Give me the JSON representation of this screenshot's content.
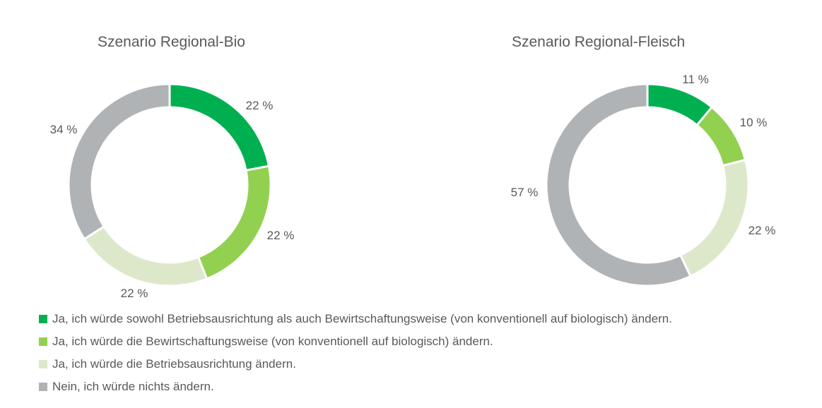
{
  "chart_data": [
    {
      "type": "pie",
      "variant": "donut",
      "title": "Szenario Regional-Bio",
      "categories": [
        "Ja, ich würde sowohl Betriebsausrichtung als auch Bewirtschaftungsweise (von konventionell auf biologisch) ändern.",
        "Ja, ich würde die Bewirtschaftungsweise (von konventionell auf biologisch) ändern.",
        "Ja, ich würde die Betriebsausrichtung ändern.",
        "Nein, ich würde nichts ändern."
      ],
      "values": [
        22,
        22,
        22,
        34
      ],
      "labels": [
        "22 %",
        "22 %",
        "22 %",
        "34 %"
      ],
      "unit": "%"
    },
    {
      "type": "pie",
      "variant": "donut",
      "title": "Szenario Regional-Fleisch",
      "categories": [
        "Ja, ich würde sowohl Betriebsausrichtung als auch Bewirtschaftungsweise (von konventionell auf biologisch) ändern.",
        "Ja, ich würde die Bewirtschaftungsweise (von konventionell auf biologisch) ändern.",
        "Ja, ich würde die Betriebsausrichtung ändern.",
        "Nein, ich würde nichts ändern."
      ],
      "values": [
        11,
        10,
        22,
        57
      ],
      "labels": [
        "11 %",
        "10 %",
        "22 %",
        "57 %"
      ],
      "unit": "%"
    }
  ],
  "legend": {
    "placement": "bottom-left",
    "items": [
      {
        "label": "Ja, ich würde sowohl Betriebsausrichtung als auch Bewirtschaftungsweise (von konventionell auf biologisch) ändern.",
        "color": "#00B050"
      },
      {
        "label": "Ja, ich würde die Bewirtschaftungsweise (von konventionell auf biologisch) ändern.",
        "color": "#92D050"
      },
      {
        "label": "Ja, ich würde die Betriebsausrichtung ändern.",
        "color": "#DDE8CB"
      },
      {
        "label": "Nein, ich würde nichts ändern.",
        "color": "#B0B3B5"
      }
    ]
  },
  "colors": [
    "#00B050",
    "#92D050",
    "#DDE8CB",
    "#B0B3B5"
  ]
}
